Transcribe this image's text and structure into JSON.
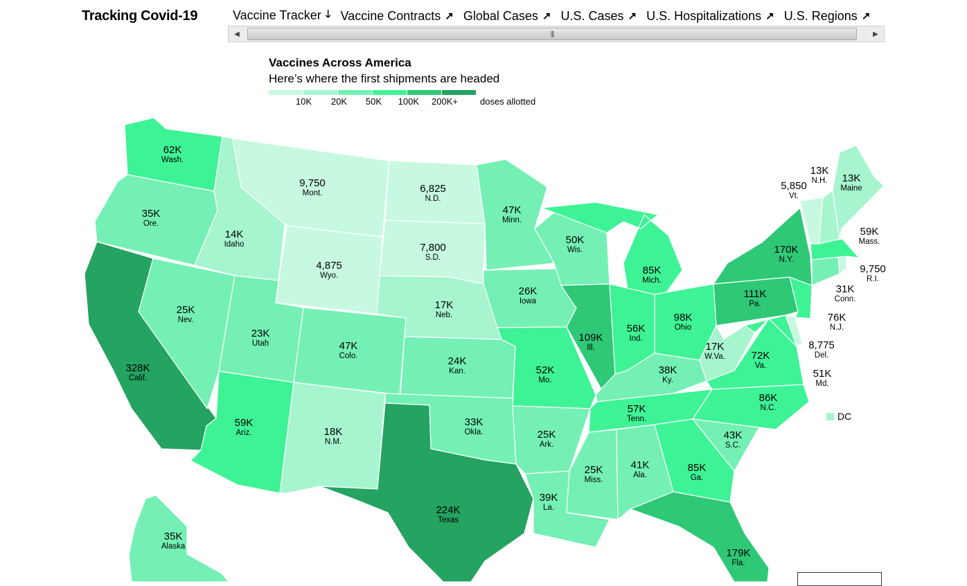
{
  "header": {
    "brand": "Tracking Covid-19"
  },
  "tabs": [
    {
      "label": "Vaccine Tracker",
      "icon": "arrow-down-icon",
      "glyph": "🡓",
      "active": true
    },
    {
      "label": "Vaccine Contracts",
      "icon": "arrow-up-right-icon",
      "glyph": "↗",
      "active": false
    },
    {
      "label": "Global Cases",
      "icon": "arrow-up-right-icon",
      "glyph": "↗",
      "active": false
    },
    {
      "label": "U.S. Cases",
      "icon": "arrow-up-right-icon",
      "glyph": "↗",
      "active": false
    },
    {
      "label": "U.S. Hospitalizations",
      "icon": "arrow-up-right-icon",
      "glyph": "↗",
      "active": false
    },
    {
      "label": "U.S. Regions",
      "icon": "arrow-up-right-icon",
      "glyph": "↗",
      "active": false
    }
  ],
  "scrollbar": {
    "left_glyph": "◀",
    "right_glyph": "▶",
    "grip": "|||"
  },
  "map": {
    "title": "Vaccines Across America",
    "subtitle": "Here’s where the first shipments are headed",
    "legend": {
      "ticks": [
        "10K",
        "20K",
        "50K",
        "100K",
        "200K+"
      ],
      "unit": "doses allotted",
      "colors": [
        "#c6f9df",
        "#a6f5cf",
        "#74f0b4",
        "#3ef395",
        "#2ec877",
        "#24a361"
      ]
    },
    "dc_label": "DC",
    "states": [
      {
        "id": "WA",
        "label": "62K",
        "abbr": "Wash.",
        "level": 3
      },
      {
        "id": "OR",
        "label": "35K",
        "abbr": "Ore.",
        "level": 2
      },
      {
        "id": "CA",
        "label": "328K",
        "abbr": "Calif.",
        "level": 5
      },
      {
        "id": "NV",
        "label": "25K",
        "abbr": "Nev.",
        "level": 2
      },
      {
        "id": "ID",
        "label": "14K",
        "abbr": "Idaho",
        "level": 1
      },
      {
        "id": "MT",
        "label": "9,750",
        "abbr": "Mont.",
        "level": 0
      },
      {
        "id": "WY",
        "label": "4,875",
        "abbr": "Wyo.",
        "level": 0
      },
      {
        "id": "UT",
        "label": "23K",
        "abbr": "Utah",
        "level": 2
      },
      {
        "id": "AZ",
        "label": "59K",
        "abbr": "Ariz.",
        "level": 3
      },
      {
        "id": "CO",
        "label": "47K",
        "abbr": "Colo.",
        "level": 2
      },
      {
        "id": "NM",
        "label": "18K",
        "abbr": "N.M.",
        "level": 1
      },
      {
        "id": "ND",
        "label": "6,825",
        "abbr": "N.D.",
        "level": 0
      },
      {
        "id": "SD",
        "label": "7,800",
        "abbr": "S.D.",
        "level": 0
      },
      {
        "id": "NE",
        "label": "17K",
        "abbr": "Neb.",
        "level": 1
      },
      {
        "id": "KS",
        "label": "24K",
        "abbr": "Kan.",
        "level": 2
      },
      {
        "id": "OK",
        "label": "33K",
        "abbr": "Okla.",
        "level": 2
      },
      {
        "id": "TX",
        "label": "224K",
        "abbr": "Texas",
        "level": 5
      },
      {
        "id": "MN",
        "label": "47K",
        "abbr": "Minn.",
        "level": 2
      },
      {
        "id": "IA",
        "label": "26K",
        "abbr": "Iowa",
        "level": 2
      },
      {
        "id": "MO",
        "label": "52K",
        "abbr": "Mo.",
        "level": 3
      },
      {
        "id": "AR",
        "label": "25K",
        "abbr": "Ark.",
        "level": 2
      },
      {
        "id": "LA",
        "label": "39K",
        "abbr": "La.",
        "level": 2
      },
      {
        "id": "WI",
        "label": "50K",
        "abbr": "Wis.",
        "level": 2
      },
      {
        "id": "IL",
        "label": "109K",
        "abbr": "Ill.",
        "level": 4
      },
      {
        "id": "MI",
        "label": "85K",
        "abbr": "Mich.",
        "level": 3
      },
      {
        "id": "IN",
        "label": "56K",
        "abbr": "Ind.",
        "level": 3
      },
      {
        "id": "OH",
        "label": "98K",
        "abbr": "Ohio",
        "level": 3
      },
      {
        "id": "KY",
        "label": "38K",
        "abbr": "Ky.",
        "level": 2
      },
      {
        "id": "TN",
        "label": "57K",
        "abbr": "Tenn.",
        "level": 3
      },
      {
        "id": "MS",
        "label": "25K",
        "abbr": "Miss.",
        "level": 2
      },
      {
        "id": "AL",
        "label": "41K",
        "abbr": "Ala.",
        "level": 2
      },
      {
        "id": "GA",
        "label": "85K",
        "abbr": "Ga.",
        "level": 3
      },
      {
        "id": "FL",
        "label": "179K",
        "abbr": "Fla.",
        "level": 4
      },
      {
        "id": "SC",
        "label": "43K",
        "abbr": "S.C.",
        "level": 2
      },
      {
        "id": "NC",
        "label": "86K",
        "abbr": "N.C.",
        "level": 3
      },
      {
        "id": "VA",
        "label": "72K",
        "abbr": "Va.",
        "level": 3
      },
      {
        "id": "WV",
        "label": "17K",
        "abbr": "W.Va.",
        "level": 1
      },
      {
        "id": "PA",
        "label": "111K",
        "abbr": "Pa.",
        "level": 4
      },
      {
        "id": "NY",
        "label": "170K",
        "abbr": "N.Y.",
        "level": 4
      },
      {
        "id": "AK",
        "label": "35K",
        "abbr": "Alaska",
        "level": 2
      },
      {
        "id": "ME",
        "label": "13K",
        "abbr": "Maine",
        "level": 1
      },
      {
        "id": "NH",
        "label": "13K",
        "abbr": "N.H.",
        "level": 1
      },
      {
        "id": "VT",
        "label": "5,850",
        "abbr": "Vt.",
        "level": 0
      },
      {
        "id": "MA",
        "label": "59K",
        "abbr": "Mass.",
        "level": 3
      },
      {
        "id": "RI",
        "label": "9,750",
        "abbr": "R.I.",
        "level": 0
      },
      {
        "id": "CT",
        "label": "31K",
        "abbr": "Conn.",
        "level": 2
      },
      {
        "id": "NJ",
        "label": "76K",
        "abbr": "N.J.",
        "level": 3
      },
      {
        "id": "DE",
        "label": "8,775",
        "abbr": "Del.",
        "level": 0
      },
      {
        "id": "MD",
        "label": "51K",
        "abbr": "Md.",
        "level": 3
      }
    ]
  }
}
